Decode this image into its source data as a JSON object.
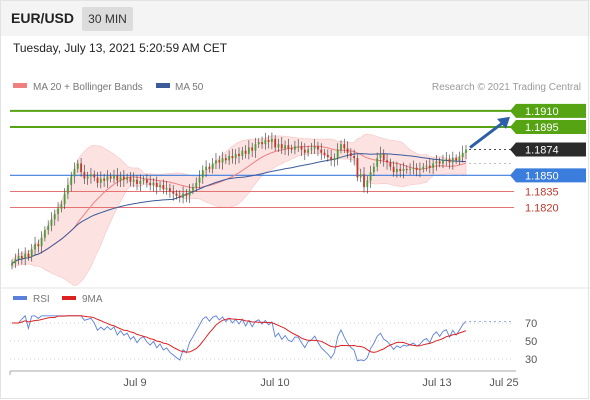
{
  "header": {
    "pair": "EUR/USD",
    "timeframe": "30 MIN",
    "datetime": "Tuesday, July 13, 2021 5:20:59 AM CET"
  },
  "legend": {
    "bb_label": "MA 20 + Bollinger Bands",
    "ma50_label": "MA 50",
    "source": "Research © 2021 Trading Central",
    "rsi_label": "RSI",
    "rsi_ma_label": "9MA"
  },
  "colors": {
    "bull": "#4a9e3a",
    "bear": "#c0392b",
    "bollinger_fill": "#fde2e2",
    "ma20": "#f08080",
    "ma50": "#3b5b9a",
    "target_line": "#56a314",
    "support_blue": "#3b7ddd",
    "support_red": "#e57373",
    "current_price_bg": "#2b2b2b",
    "arrow": "#2e5ea8",
    "rsi": "#5b7fdc",
    "rsi_ma": "#dd2222"
  },
  "chart_data": [
    {
      "type": "candlestick",
      "title": "EUR/USD",
      "ylim": [
        1.176,
        1.1922
      ],
      "x_ticks": [
        "Jul 9",
        "Jul 10",
        "Jul 13",
        "Jul 25"
      ],
      "current_price": "1.1874",
      "levels": [
        {
          "value": 1.191,
          "label": "1.1910",
          "kind": "resistance"
        },
        {
          "value": 1.1895,
          "label": "1.1895",
          "kind": "resistance"
        },
        {
          "value": 1.185,
          "label": "1.1850",
          "kind": "pivot"
        },
        {
          "value": 1.1835,
          "label": "1.1835",
          "kind": "support"
        },
        {
          "value": 1.182,
          "label": "1.1820",
          "kind": "support"
        }
      ],
      "close_series": [
        1.1768,
        1.1772,
        1.1775,
        1.1773,
        1.1777,
        1.1774,
        1.1781,
        1.1786,
        1.1784,
        1.1792,
        1.1799,
        1.1803,
        1.1809,
        1.1814,
        1.1819,
        1.1823,
        1.1833,
        1.1841,
        1.1849,
        1.1856,
        1.1861,
        1.1853,
        1.1847,
        1.1849,
        1.1851,
        1.1848,
        1.1843,
        1.1847,
        1.1845,
        1.1849,
        1.1847,
        1.185,
        1.1845,
        1.1849,
        1.1846,
        1.1848,
        1.1844,
        1.1846,
        1.1842,
        1.1845,
        1.1846,
        1.1843,
        1.1841,
        1.1843,
        1.1839,
        1.1841,
        1.1837,
        1.1838,
        1.1835,
        1.1833,
        1.1831,
        1.1829,
        1.1833,
        1.1831,
        1.1836,
        1.1839,
        1.1843,
        1.1848,
        1.1855,
        1.1858,
        1.1856,
        1.1861,
        1.1864,
        1.1862,
        1.1866,
        1.1864,
        1.1868,
        1.1866,
        1.187,
        1.1868,
        1.1873,
        1.187,
        1.1876,
        1.1873,
        1.1879,
        1.1881,
        1.1879,
        1.1883,
        1.1881,
        1.1884,
        1.1876,
        1.1879,
        1.1875,
        1.1878,
        1.1875,
        1.1874,
        1.1877,
        1.1877,
        1.1874,
        1.1871,
        1.1874,
        1.1875,
        1.1877,
        1.1874,
        1.1871,
        1.1869,
        1.1867,
        1.1864,
        1.1866,
        1.1874,
        1.1879,
        1.1875,
        1.1871,
        1.1868,
        1.1866,
        1.1848,
        1.1851,
        1.1839,
        1.1845,
        1.1853,
        1.1858,
        1.1866,
        1.187,
        1.1864,
        1.1862,
        1.1858,
        1.1853,
        1.1856,
        1.1854,
        1.1856,
        1.1855,
        1.1856,
        1.1857,
        1.1855,
        1.1856,
        1.1858,
        1.1859,
        1.1857,
        1.1861,
        1.1863,
        1.1861,
        1.1864,
        1.1865,
        1.1862,
        1.1866,
        1.1864,
        1.1867,
        1.1871,
        1.1874
      ]
    },
    {
      "type": "line",
      "title": "RSI",
      "ylim": [
        20,
        80
      ],
      "y_ticks": [
        "70",
        "50",
        "30"
      ],
      "series_names": [
        "RSI",
        "9MA"
      ]
    }
  ]
}
